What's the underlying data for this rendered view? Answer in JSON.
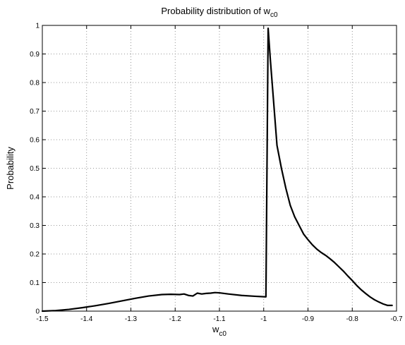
{
  "chart_data": {
    "type": "line",
    "title": {
      "main": "Probability distribution of w",
      "sub": "c0"
    },
    "xlabel": {
      "main": "w",
      "sub": "c0"
    },
    "ylabel": "Probability",
    "xlim": [
      -1.5,
      -0.7
    ],
    "ylim": [
      0,
      1
    ],
    "grid": true,
    "xticks": [
      -1.5,
      -1.4,
      -1.3,
      -1.2,
      -1.1,
      -1,
      -0.9,
      -0.8,
      -0.7
    ],
    "xtick_labels": [
      "-1.5",
      "-1.4",
      "-1.3",
      "-1.2",
      "-1.1",
      "-1",
      "-0.9",
      "-0.8",
      "-0.7"
    ],
    "yticks": [
      0,
      0.1,
      0.2,
      0.3,
      0.4,
      0.5,
      0.6,
      0.7,
      0.8,
      0.9,
      1
    ],
    "ytick_labels": [
      "0",
      "0.1",
      "0.2",
      "0.3",
      "0.4",
      "0.5",
      "0.6",
      "0.7",
      "0.8",
      "0.9",
      "1"
    ],
    "series": [
      {
        "color": "#000000",
        "x": [
          -1.5,
          -1.47,
          -1.44,
          -1.41,
          -1.38,
          -1.35,
          -1.32,
          -1.29,
          -1.26,
          -1.23,
          -1.21,
          -1.19,
          -1.18,
          -1.17,
          -1.16,
          -1.15,
          -1.14,
          -1.13,
          -1.12,
          -1.11,
          -1.1,
          -1.08,
          -1.05,
          -1.02,
          -0.995,
          -0.99,
          -0.985,
          -0.978,
          -0.97,
          -0.96,
          -0.95,
          -0.94,
          -0.93,
          -0.92,
          -0.91,
          -0.9,
          -0.89,
          -0.88,
          -0.87,
          -0.86,
          -0.85,
          -0.84,
          -0.83,
          -0.82,
          -0.81,
          -0.8,
          -0.79,
          -0.78,
          -0.77,
          -0.76,
          -0.75,
          -0.74,
          -0.73,
          -0.72,
          -0.71
        ],
        "y": [
          0.0,
          0.002,
          0.006,
          0.012,
          0.019,
          0.027,
          0.036,
          0.045,
          0.053,
          0.058,
          0.059,
          0.058,
          0.06,
          0.055,
          0.053,
          0.063,
          0.06,
          0.062,
          0.063,
          0.065,
          0.064,
          0.06,
          0.055,
          0.052,
          0.05,
          0.99,
          0.88,
          0.74,
          0.58,
          0.5,
          0.43,
          0.37,
          0.33,
          0.3,
          0.27,
          0.25,
          0.232,
          0.217,
          0.205,
          0.195,
          0.183,
          0.17,
          0.155,
          0.14,
          0.123,
          0.107,
          0.09,
          0.075,
          0.062,
          0.05,
          0.04,
          0.032,
          0.025,
          0.02,
          0.02
        ]
      }
    ]
  }
}
